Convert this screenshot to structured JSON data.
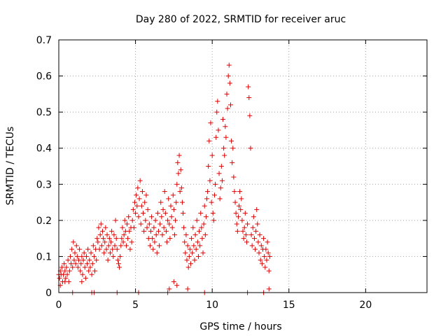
{
  "chart_data": {
    "type": "scatter",
    "title": "Day 280 of 2022, SRMTID for receiver aruc",
    "xlabel": "GPS time / hours",
    "ylabel": "SRMTID / TECUs",
    "xlim": [
      0,
      24
    ],
    "ylim": [
      0,
      0.7
    ],
    "xticks": [
      0,
      5,
      10,
      15,
      20
    ],
    "xtick_labels": [
      "0",
      "5",
      "10",
      "15",
      "20"
    ],
    "yticks": [
      0,
      0.1,
      0.2,
      0.3,
      0.4,
      0.5,
      0.6,
      0.7
    ],
    "ytick_labels": [
      "0",
      "0.1",
      "0.2",
      "0.3",
      "0.4",
      "0.5",
      "0.6",
      "0.7"
    ],
    "grid": true,
    "marker": "+",
    "color": "#e00000",
    "series": [
      {
        "name": "SRMTID",
        "points": [
          [
            0.0,
            0.05
          ],
          [
            0.05,
            0.04
          ],
          [
            0.1,
            0.06
          ],
          [
            0.15,
            0.05
          ],
          [
            0.2,
            0.07
          ],
          [
            0.25,
            0.03
          ],
          [
            0.3,
            0.05
          ],
          [
            0.35,
            0.08
          ],
          [
            0.4,
            0.06
          ],
          [
            0.45,
            0.04
          ],
          [
            0.5,
            0.07
          ],
          [
            0.55,
            0.05
          ],
          [
            0.6,
            0.09
          ],
          [
            0.65,
            0.03
          ],
          [
            0.7,
            0.06
          ],
          [
            0.75,
            0.1
          ],
          [
            0.8,
            0.08
          ],
          [
            0.85,
            0.12
          ],
          [
            0.9,
            0.07
          ],
          [
            0.95,
            0.14
          ],
          [
            1.0,
            0.09
          ],
          [
            1.05,
            0.11
          ],
          [
            1.1,
            0.08
          ],
          [
            1.15,
            0.13
          ],
          [
            1.2,
            0.1
          ],
          [
            1.25,
            0.07
          ],
          [
            1.3,
            0.09
          ],
          [
            1.35,
            0.12
          ],
          [
            1.4,
            0.06
          ],
          [
            1.45,
            0.08
          ],
          [
            1.5,
            0.1
          ],
          [
            1.55,
            0.05
          ],
          [
            1.6,
            0.09
          ],
          [
            1.65,
            0.11
          ],
          [
            1.7,
            0.07
          ],
          [
            1.75,
            0.04
          ],
          [
            1.8,
            0.1
          ],
          [
            1.85,
            0.08
          ],
          [
            1.9,
            0.12
          ],
          [
            1.95,
            0.06
          ],
          [
            2.0,
            0.09
          ],
          [
            2.05,
            0.07
          ],
          [
            2.1,
            0.11
          ],
          [
            2.15,
            0.05
          ],
          [
            2.2,
            0.08
          ],
          [
            2.25,
            0.13
          ],
          [
            2.3,
            0.1
          ],
          [
            2.35,
            0.06
          ],
          [
            2.4,
            0.12
          ],
          [
            2.45,
            0.09
          ],
          [
            2.5,
            0.15
          ],
          [
            2.55,
            0.14
          ],
          [
            2.6,
            0.18
          ],
          [
            2.65,
            0.12
          ],
          [
            2.7,
            0.16
          ],
          [
            2.75,
            0.19
          ],
          [
            2.8,
            0.13
          ],
          [
            2.85,
            0.17
          ],
          [
            2.9,
            0.15
          ],
          [
            2.95,
            0.11
          ],
          [
            3.0,
            0.14
          ],
          [
            3.05,
            0.18
          ],
          [
            3.1,
            0.12
          ],
          [
            3.15,
            0.16
          ],
          [
            3.2,
            0.09
          ],
          [
            3.25,
            0.13
          ],
          [
            3.3,
            0.15
          ],
          [
            3.35,
            0.11
          ],
          [
            3.4,
            0.14
          ],
          [
            3.45,
            0.17
          ],
          [
            3.5,
            0.12
          ],
          [
            3.55,
            0.1
          ],
          [
            3.6,
            0.16
          ],
          [
            3.65,
            0.13
          ],
          [
            3.7,
            0.2
          ],
          [
            3.75,
            0.15
          ],
          [
            3.8,
            0.12
          ],
          [
            3.85,
            0.09
          ],
          [
            3.9,
            0.08
          ],
          [
            3.95,
            0.07
          ],
          [
            4.0,
            0.1
          ],
          [
            4.05,
            0.13
          ],
          [
            4.1,
            0.15
          ],
          [
            4.15,
            0.18
          ],
          [
            4.2,
            0.14
          ],
          [
            4.25,
            0.16
          ],
          [
            4.3,
            0.2
          ],
          [
            4.35,
            0.17
          ],
          [
            4.4,
            0.13
          ],
          [
            4.45,
            0.19
          ],
          [
            4.5,
            0.15
          ],
          [
            4.55,
            0.21
          ],
          [
            4.6,
            0.17
          ],
          [
            4.65,
            0.12
          ],
          [
            4.7,
            0.18
          ],
          [
            4.75,
            0.14
          ],
          [
            4.8,
            0.2
          ],
          [
            4.85,
            0.23
          ],
          [
            4.9,
            0.18
          ],
          [
            4.95,
            0.25
          ],
          [
            5.0,
            0.22
          ],
          [
            5.05,
            0.27
          ],
          [
            5.1,
            0.24
          ],
          [
            5.15,
            0.29
          ],
          [
            5.2,
            0.21
          ],
          [
            5.25,
            0.26
          ],
          [
            5.3,
            0.31
          ],
          [
            5.35,
            0.19
          ],
          [
            5.4,
            0.24
          ],
          [
            5.45,
            0.28
          ],
          [
            5.5,
            0.22
          ],
          [
            5.55,
            0.17
          ],
          [
            5.6,
            0.25
          ],
          [
            5.65,
            0.2
          ],
          [
            5.7,
            0.27
          ],
          [
            5.75,
            0.18
          ],
          [
            5.8,
            0.23
          ],
          [
            5.85,
            0.15
          ],
          [
            5.9,
            0.19
          ],
          [
            5.95,
            0.13
          ],
          [
            6.0,
            0.17
          ],
          [
            6.05,
            0.21
          ],
          [
            6.1,
            0.15
          ],
          [
            6.15,
            0.12
          ],
          [
            6.2,
            0.18
          ],
          [
            6.25,
            0.14
          ],
          [
            6.3,
            0.2
          ],
          [
            6.35,
            0.16
          ],
          [
            6.4,
            0.11
          ],
          [
            6.45,
            0.22
          ],
          [
            6.5,
            0.17
          ],
          [
            6.55,
            0.13
          ],
          [
            6.6,
            0.19
          ],
          [
            6.65,
            0.25
          ],
          [
            6.7,
            0.21
          ],
          [
            6.75,
            0.16
          ],
          [
            6.8,
            0.23
          ],
          [
            6.85,
            0.18
          ],
          [
            6.9,
            0.28
          ],
          [
            6.95,
            0.22
          ],
          [
            7.0,
            0.17
          ],
          [
            7.05,
            0.14
          ],
          [
            7.1,
            0.2
          ],
          [
            7.15,
            0.26
          ],
          [
            7.2,
            0.19
          ],
          [
            7.25,
            0.15
          ],
          [
            7.3,
            0.24
          ],
          [
            7.35,
            0.21
          ],
          [
            7.4,
            0.18
          ],
          [
            7.45,
            0.27
          ],
          [
            7.5,
            0.23
          ],
          [
            7.55,
            0.16
          ],
          [
            7.6,
            0.2
          ],
          [
            7.65,
            0.25
          ],
          [
            7.7,
            0.3
          ],
          [
            7.75,
            0.36
          ],
          [
            7.8,
            0.33
          ],
          [
            7.85,
            0.38
          ],
          [
            7.9,
            0.28
          ],
          [
            7.95,
            0.34
          ],
          [
            8.0,
            0.29
          ],
          [
            8.05,
            0.25
          ],
          [
            8.1,
            0.22
          ],
          [
            8.15,
            0.18
          ],
          [
            8.2,
            0.14
          ],
          [
            8.25,
            0.11
          ],
          [
            8.3,
            0.16
          ],
          [
            8.35,
            0.09
          ],
          [
            8.4,
            0.13
          ],
          [
            8.45,
            0.07
          ],
          [
            8.5,
            0.1
          ],
          [
            8.55,
            0.12
          ],
          [
            8.6,
            0.08
          ],
          [
            8.65,
            0.15
          ],
          [
            8.7,
            0.11
          ],
          [
            8.75,
            0.18
          ],
          [
            8.8,
            0.13
          ],
          [
            8.85,
            0.09
          ],
          [
            8.9,
            0.16
          ],
          [
            8.95,
            0.12
          ],
          [
            9.0,
            0.2
          ],
          [
            9.05,
            0.14
          ],
          [
            9.1,
            0.1
          ],
          [
            9.15,
            0.17
          ],
          [
            9.2,
            0.13
          ],
          [
            9.25,
            0.22
          ],
          [
            9.3,
            0.18
          ],
          [
            9.35,
            0.15
          ],
          [
            9.4,
            0.11
          ],
          [
            9.45,
            0.19
          ],
          [
            9.5,
            0.24
          ],
          [
            9.55,
            0.16
          ],
          [
            9.6,
            0.21
          ],
          [
            9.65,
            0.26
          ],
          [
            9.7,
            0.28
          ],
          [
            9.75,
            0.35
          ],
          [
            9.8,
            0.42
          ],
          [
            9.85,
            0.31
          ],
          [
            9.9,
            0.47
          ],
          [
            9.95,
            0.25
          ],
          [
            10.0,
            0.38
          ],
          [
            10.05,
            0.22
          ],
          [
            10.1,
            0.2
          ],
          [
            10.15,
            0.27
          ],
          [
            10.2,
            0.3
          ],
          [
            10.25,
            0.43
          ],
          [
            10.3,
            0.5
          ],
          [
            10.35,
            0.53
          ],
          [
            10.4,
            0.45
          ],
          [
            10.45,
            0.33
          ],
          [
            10.5,
            0.26
          ],
          [
            10.55,
            0.29
          ],
          [
            10.6,
            0.35
          ],
          [
            10.65,
            0.31
          ],
          [
            10.7,
            0.48
          ],
          [
            10.75,
            0.4
          ],
          [
            10.8,
            0.38
          ],
          [
            10.85,
            0.46
          ],
          [
            10.9,
            0.43
          ],
          [
            10.95,
            0.55
          ],
          [
            11.0,
            0.51
          ],
          [
            11.05,
            0.6
          ],
          [
            11.1,
            0.63
          ],
          [
            11.15,
            0.58
          ],
          [
            11.2,
            0.52
          ],
          [
            11.25,
            0.42
          ],
          [
            11.3,
            0.36
          ],
          [
            11.35,
            0.4
          ],
          [
            11.4,
            0.32
          ],
          [
            11.45,
            0.28
          ],
          [
            11.5,
            0.25
          ],
          [
            11.55,
            0.22
          ],
          [
            11.6,
            0.19
          ],
          [
            11.65,
            0.17
          ],
          [
            11.7,
            0.21
          ],
          [
            11.75,
            0.24
          ],
          [
            11.8,
            0.28
          ],
          [
            11.85,
            0.23
          ],
          [
            11.9,
            0.26
          ],
          [
            11.95,
            0.2
          ],
          [
            12.0,
            0.17
          ],
          [
            12.05,
            0.15
          ],
          [
            12.1,
            0.18
          ],
          [
            12.15,
            0.22
          ],
          [
            12.2,
            0.16
          ],
          [
            12.25,
            0.14
          ],
          [
            12.3,
            0.19
          ],
          [
            12.35,
            0.57
          ],
          [
            12.4,
            0.54
          ],
          [
            12.45,
            0.49
          ],
          [
            12.5,
            0.4
          ],
          [
            12.55,
            0.16
          ],
          [
            12.6,
            0.13
          ],
          [
            12.65,
            0.18
          ],
          [
            12.7,
            0.21
          ],
          [
            12.75,
            0.15
          ],
          [
            12.8,
            0.12
          ],
          [
            12.85,
            0.17
          ],
          [
            12.9,
            0.23
          ],
          [
            12.95,
            0.19
          ],
          [
            13.0,
            0.14
          ],
          [
            13.05,
            0.11
          ],
          [
            13.1,
            0.16
          ],
          [
            13.15,
            0.09
          ],
          [
            13.2,
            0.13
          ],
          [
            13.25,
            0.08
          ],
          [
            13.3,
            0.12
          ],
          [
            13.35,
            0.15
          ],
          [
            13.4,
            0.1
          ],
          [
            13.45,
            0.07
          ],
          [
            13.5,
            0.12
          ],
          [
            13.55,
            0.09
          ],
          [
            13.6,
            0.14
          ],
          [
            13.65,
            0.11
          ],
          [
            13.7,
            0.06
          ],
          [
            13.75,
            0.1
          ],
          [
            0.1,
            0.02
          ],
          [
            0.4,
            0.03
          ],
          [
            0.9,
            0.0
          ],
          [
            1.5,
            0.03
          ],
          [
            2.15,
            0.0
          ],
          [
            2.3,
            0.0
          ],
          [
            3.8,
            0.0
          ],
          [
            5.2,
            0.0
          ],
          [
            7.1,
            0.0
          ],
          [
            7.2,
            0.01
          ],
          [
            7.5,
            0.03
          ],
          [
            7.7,
            0.02
          ],
          [
            8.4,
            0.01
          ],
          [
            9.5,
            0.0
          ],
          [
            12.3,
            0.0
          ],
          [
            13.35,
            0.0
          ],
          [
            13.7,
            0.01
          ]
        ]
      }
    ]
  }
}
